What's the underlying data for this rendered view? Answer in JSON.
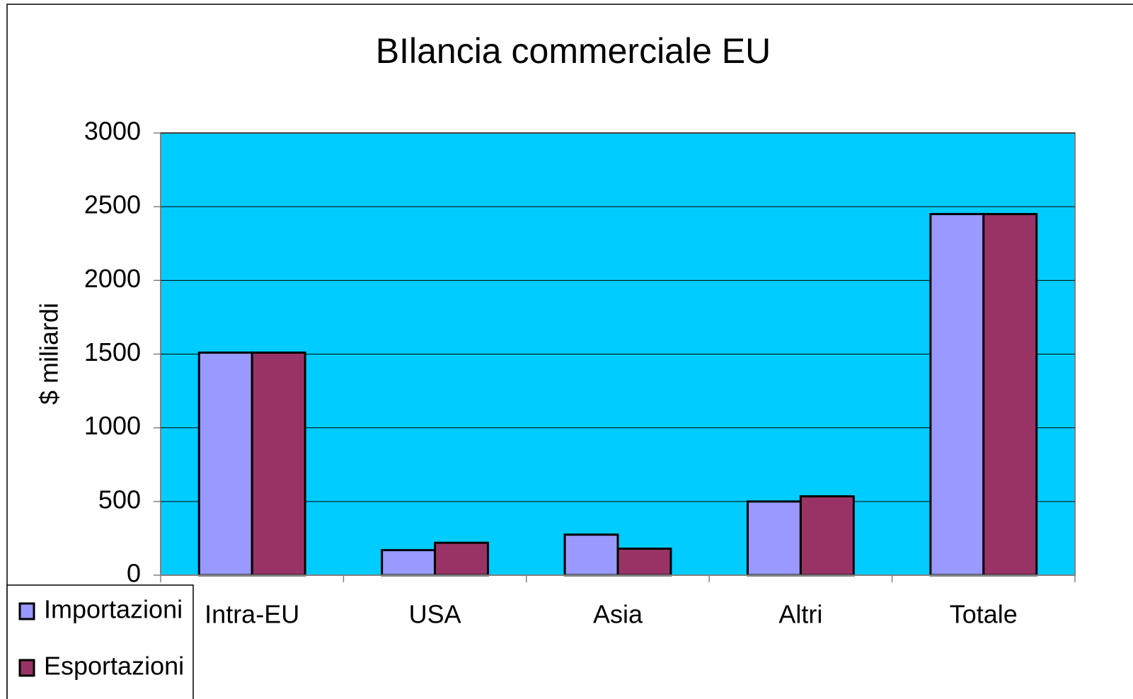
{
  "chart_data": {
    "type": "bar",
    "title": "BIlancia commerciale EU",
    "y_label": "$ miliardi",
    "categories": [
      "Intra-EU",
      "USA",
      "Asia",
      "Altri",
      "Totale"
    ],
    "series": [
      {
        "name": "Importazioni",
        "color": "#9999ff",
        "values": [
          1510,
          170,
          275,
          500,
          2450
        ]
      },
      {
        "name": "Esportazioni",
        "color": "#993366",
        "values": [
          1510,
          220,
          180,
          535,
          2450
        ]
      }
    ],
    "ylim": [
      0,
      3000
    ],
    "yticks": [
      0,
      500,
      1000,
      1500,
      2000,
      2500,
      3000
    ],
    "grid": true,
    "plot_background": "#00ccff",
    "legend": "bottom-left"
  }
}
